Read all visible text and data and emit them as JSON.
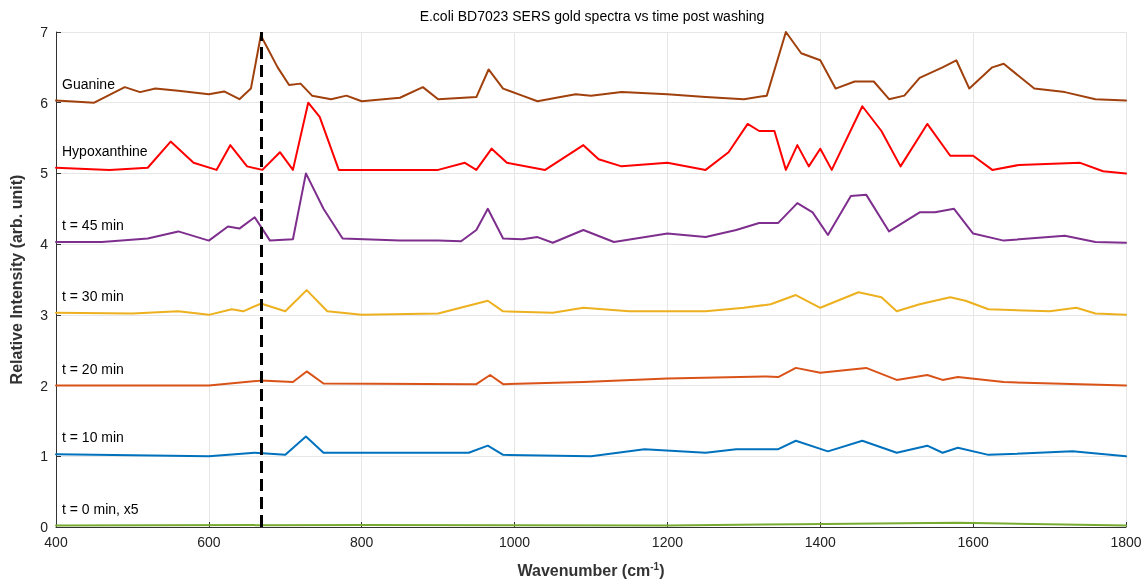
{
  "chart_data": {
    "type": "line",
    "title": "E.coli BD7023 SERS gold spectra vs time post washing",
    "xlabel": "Wavenumber (cm$^{-1}$)",
    "ylabel": "Relative Intensity (arb. unit)",
    "xlim": [
      400,
      1800
    ],
    "xticks": [
      400,
      600,
      800,
      1000,
      1200,
      1400,
      1600,
      1800
    ],
    "ylim": [
      0,
      7
    ],
    "yticks": [
      0,
      1,
      2,
      3,
      4,
      5,
      6,
      7
    ],
    "grid": true,
    "legend": false,
    "marker": "none",
    "line_style": "solid",
    "ref_lines": [
      {
        "axis": "x",
        "value": 668,
        "color": "#000000",
        "line_style": "dashed"
      }
    ],
    "series": [
      {
        "name": "Guanine",
        "color": "#a0410d",
        "x": [
          400,
          450,
          490,
          510,
          530,
          560,
          600,
          620,
          640,
          655,
          668,
          690,
          705,
          720,
          735,
          760,
          780,
          800,
          850,
          880,
          900,
          950,
          966,
          985,
          1010,
          1030,
          1060,
          1080,
          1100,
          1140,
          1200,
          1250,
          1300,
          1330,
          1355,
          1375,
          1400,
          1420,
          1445,
          1470,
          1490,
          1510,
          1530,
          1560,
          1578,
          1595,
          1625,
          1640,
          1680,
          1720,
          1760,
          1800
        ],
        "values": [
          6.03,
          6.0,
          6.22,
          6.15,
          6.2,
          6.17,
          6.12,
          6.16,
          6.05,
          6.2,
          6.95,
          6.5,
          6.25,
          6.27,
          6.1,
          6.05,
          6.1,
          6.02,
          6.07,
          6.22,
          6.05,
          6.08,
          6.47,
          6.2,
          6.1,
          6.02,
          6.08,
          6.12,
          6.1,
          6.15,
          6.12,
          6.08,
          6.05,
          6.1,
          7.0,
          6.7,
          6.6,
          6.2,
          6.3,
          6.3,
          6.05,
          6.1,
          6.35,
          6.5,
          6.6,
          6.2,
          6.5,
          6.55,
          6.2,
          6.15,
          6.05,
          6.03
        ]
      },
      {
        "name": "Hypoxanthine",
        "color": "#ff0000",
        "x": [
          400,
          470,
          520,
          550,
          580,
          610,
          628,
          650,
          670,
          693,
          710,
          730,
          745,
          770,
          800,
          900,
          935,
          950,
          970,
          990,
          1040,
          1090,
          1110,
          1140,
          1200,
          1250,
          1280,
          1305,
          1320,
          1340,
          1355,
          1370,
          1385,
          1400,
          1415,
          1455,
          1480,
          1505,
          1540,
          1570,
          1600,
          1625,
          1660,
          1740,
          1770,
          1800
        ],
        "values": [
          5.08,
          5.05,
          5.08,
          5.45,
          5.15,
          5.05,
          5.4,
          5.1,
          5.05,
          5.3,
          5.05,
          6.0,
          5.8,
          5.05,
          5.05,
          5.05,
          5.15,
          5.05,
          5.35,
          5.15,
          5.05,
          5.4,
          5.2,
          5.1,
          5.15,
          5.05,
          5.3,
          5.7,
          5.6,
          5.6,
          5.05,
          5.4,
          5.1,
          5.35,
          5.05,
          5.95,
          5.6,
          5.1,
          5.7,
          5.25,
          5.25,
          5.05,
          5.12,
          5.15,
          5.03,
          5.0
        ]
      },
      {
        "name": "t = 45 min",
        "color": "#7e2f8e",
        "x": [
          400,
          460,
          520,
          560,
          600,
          625,
          640,
          660,
          680,
          710,
          727,
          750,
          775,
          850,
          900,
          930,
          950,
          965,
          985,
          1010,
          1030,
          1050,
          1090,
          1130,
          1200,
          1250,
          1290,
          1320,
          1345,
          1370,
          1390,
          1410,
          1440,
          1460,
          1490,
          1530,
          1550,
          1575,
          1600,
          1640,
          1720,
          1760,
          1800
        ],
        "values": [
          4.03,
          4.03,
          4.08,
          4.18,
          4.05,
          4.25,
          4.22,
          4.38,
          4.05,
          4.07,
          5.0,
          4.5,
          4.08,
          4.05,
          4.05,
          4.04,
          4.2,
          4.5,
          4.08,
          4.07,
          4.1,
          4.02,
          4.2,
          4.03,
          4.15,
          4.1,
          4.2,
          4.3,
          4.3,
          4.58,
          4.45,
          4.13,
          4.68,
          4.7,
          4.18,
          4.45,
          4.45,
          4.5,
          4.15,
          4.05,
          4.12,
          4.03,
          4.02
        ]
      },
      {
        "name": "t = 30 min",
        "color": "#edb120",
        "x": [
          400,
          500,
          560,
          600,
          630,
          645,
          668,
          700,
          728,
          755,
          800,
          900,
          965,
          985,
          1050,
          1090,
          1150,
          1250,
          1300,
          1335,
          1368,
          1400,
          1450,
          1480,
          1500,
          1530,
          1570,
          1590,
          1620,
          1700,
          1735,
          1760,
          1800
        ],
        "values": [
          3.03,
          3.02,
          3.05,
          3.0,
          3.08,
          3.05,
          3.16,
          3.05,
          3.35,
          3.05,
          3.0,
          3.02,
          3.2,
          3.05,
          3.03,
          3.1,
          3.05,
          3.05,
          3.1,
          3.15,
          3.28,
          3.1,
          3.32,
          3.25,
          3.05,
          3.15,
          3.25,
          3.2,
          3.08,
          3.05,
          3.1,
          3.02,
          3.0
        ]
      },
      {
        "name": "t = 20 min",
        "color": "#d95319",
        "x": [
          400,
          600,
          668,
          710,
          728,
          750,
          950,
          968,
          985,
          1090,
          1200,
          1330,
          1345,
          1368,
          1400,
          1460,
          1500,
          1540,
          1560,
          1580,
          1640,
          1800
        ],
        "values": [
          2.0,
          2.0,
          2.07,
          2.05,
          2.2,
          2.03,
          2.02,
          2.15,
          2.02,
          2.05,
          2.1,
          2.13,
          2.12,
          2.25,
          2.18,
          2.25,
          2.08,
          2.15,
          2.08,
          2.12,
          2.05,
          2.0
        ]
      },
      {
        "name": "t = 10 min",
        "color": "#0072bd",
        "x": [
          400,
          600,
          660,
          700,
          727,
          750,
          940,
          965,
          985,
          1100,
          1170,
          1250,
          1290,
          1345,
          1368,
          1410,
          1455,
          1500,
          1540,
          1560,
          1580,
          1620,
          1730,
          1800
        ],
        "values": [
          1.03,
          1.0,
          1.05,
          1.02,
          1.28,
          1.05,
          1.05,
          1.15,
          1.02,
          1.0,
          1.1,
          1.05,
          1.1,
          1.1,
          1.22,
          1.07,
          1.22,
          1.05,
          1.15,
          1.05,
          1.12,
          1.02,
          1.07,
          1.0
        ]
      },
      {
        "name": "t = 0 min, x5",
        "color": "#77ac30",
        "x": [
          400,
          800,
          1200,
          1370,
          1580,
          1800
        ],
        "values": [
          0.02,
          0.03,
          0.02,
          0.04,
          0.06,
          0.02
        ]
      }
    ]
  }
}
